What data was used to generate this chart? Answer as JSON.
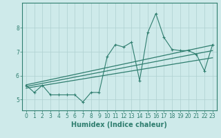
{
  "xlabel": "Humidex (Indice chaleur)",
  "ylabel": "",
  "x_values": [
    0,
    1,
    2,
    3,
    4,
    5,
    6,
    7,
    8,
    9,
    10,
    11,
    12,
    13,
    14,
    15,
    16,
    17,
    18,
    19,
    20,
    21,
    22,
    23
  ],
  "y_main": [
    5.6,
    5.3,
    5.6,
    5.2,
    5.2,
    5.2,
    5.2,
    4.9,
    5.3,
    5.3,
    6.8,
    7.3,
    7.2,
    7.4,
    5.8,
    7.8,
    8.6,
    7.6,
    7.1,
    7.05,
    7.05,
    6.9,
    6.2,
    7.3
  ],
  "line_color": "#2e7d6e",
  "marker": "+",
  "bg_color": "#ceeaea",
  "grid_color": "#aed0d0",
  "axes_color": "#2e7d6e",
  "regression_lines": [
    {
      "x0": 0,
      "y0": 5.62,
      "x1": 23,
      "y1": 7.28
    },
    {
      "x0": 0,
      "y0": 5.55,
      "x1": 23,
      "y1": 7.05
    },
    {
      "x0": 0,
      "y0": 5.48,
      "x1": 23,
      "y1": 6.75
    }
  ],
  "xlim": [
    -0.5,
    23.5
  ],
  "ylim": [
    4.55,
    9.05
  ],
  "yticks": [
    5,
    6,
    7,
    8
  ],
  "xticks": [
    0,
    1,
    2,
    3,
    4,
    5,
    6,
    7,
    8,
    9,
    10,
    11,
    12,
    13,
    14,
    15,
    16,
    17,
    18,
    19,
    20,
    21,
    22,
    23
  ],
  "tick_fontsize": 5.5,
  "label_fontsize": 7
}
